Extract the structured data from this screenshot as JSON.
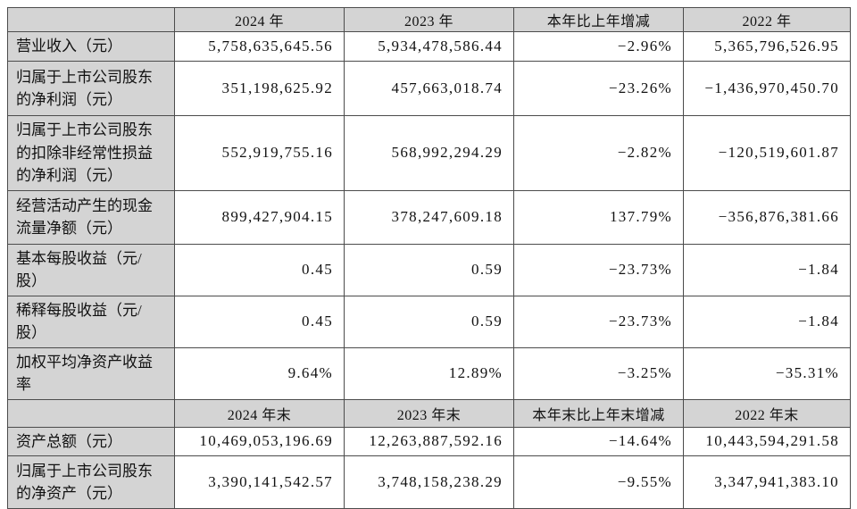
{
  "table": {
    "title_semantic": "公司主要会计数据和财务指标摘要",
    "colors": {
      "header_bg": "#d4d4d4",
      "label_bg": "#d4d4d4",
      "cell_bg": "#ffffff",
      "border": "#4c4c4c",
      "text": "#111111"
    },
    "header1": {
      "corner": "",
      "cols": [
        "2024 年",
        "2023 年",
        "本年比上年增减",
        "2022 年"
      ]
    },
    "rows1": [
      {
        "label": "营业收入（元）",
        "values": [
          "5,758,635,645.56",
          "5,934,478,586.44",
          "−2.96%",
          "5,365,796,526.95"
        ]
      },
      {
        "label": "归属于上市公司股东的净利润（元）",
        "values": [
          "351,198,625.92",
          "457,663,018.74",
          "−23.26%",
          "−1,436,970,450.70"
        ]
      },
      {
        "label": "归属于上市公司股东的扣除非经常性损益的净利润（元）",
        "values": [
          "552,919,755.16",
          "568,992,294.29",
          "−2.82%",
          "−120,519,601.87"
        ]
      },
      {
        "label": "经营活动产生的现金流量净额（元）",
        "values": [
          "899,427,904.15",
          "378,247,609.18",
          "137.79%",
          "−356,876,381.66"
        ]
      },
      {
        "label": "基本每股收益（元/股）",
        "values": [
          "0.45",
          "0.59",
          "−23.73%",
          "−1.84"
        ]
      },
      {
        "label": "稀释每股收益（元/股）",
        "values": [
          "0.45",
          "0.59",
          "−23.73%",
          "−1.84"
        ]
      },
      {
        "label": "加权平均净资产收益率",
        "values": [
          "9.64%",
          "12.89%",
          "−3.25%",
          "−35.31%"
        ]
      }
    ],
    "header2": {
      "corner": "",
      "cols": [
        "2024 年末",
        "2023 年末",
        "本年末比上年末增减",
        "2022 年末"
      ]
    },
    "rows2": [
      {
        "label": "资产总额（元）",
        "values": [
          "10,469,053,196.69",
          "12,263,887,592.16",
          "−14.64%",
          "10,443,594,291.58"
        ]
      },
      {
        "label": "归属于上市公司股东的净资产（元）",
        "values": [
          "3,390,141,542.57",
          "3,748,158,238.29",
          "−9.55%",
          "3,347,941,383.10"
        ]
      }
    ]
  }
}
